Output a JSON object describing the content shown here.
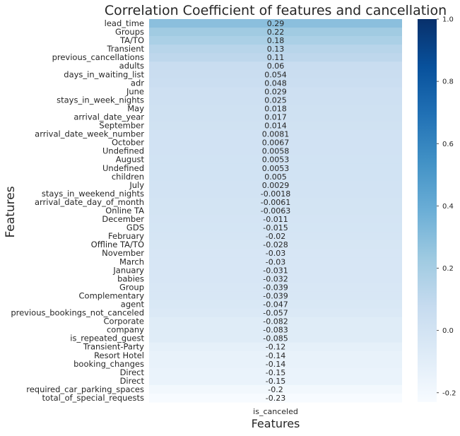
{
  "chart_data": {
    "type": "heatmap",
    "title": "Correlation Coefficient of features and cancellation",
    "xlabel": "Features",
    "ylabel": "Features",
    "column": "is_canceled",
    "colormap": "Blues",
    "vmin": -0.23,
    "vmax": 1.0,
    "colorbar_ticks": [
      1.0,
      0.8,
      0.6,
      0.4,
      0.2,
      0.0,
      -0.2
    ],
    "colorbar_tick_labels": [
      "1.0",
      "0.8",
      "0.6",
      "0.4",
      "0.2",
      "0.0",
      "-0.2"
    ],
    "rows": [
      {
        "label": "lead_time",
        "value": 0.29,
        "text": "0.29"
      },
      {
        "label": "Groups",
        "value": 0.22,
        "text": "0.22"
      },
      {
        "label": "TA/TO",
        "value": 0.18,
        "text": "0.18"
      },
      {
        "label": "Transient",
        "value": 0.13,
        "text": "0.13"
      },
      {
        "label": "previous_cancellations",
        "value": 0.11,
        "text": "0.11"
      },
      {
        "label": "adults",
        "value": 0.06,
        "text": "0.06"
      },
      {
        "label": "days_in_waiting_list",
        "value": 0.054,
        "text": "0.054"
      },
      {
        "label": "adr",
        "value": 0.048,
        "text": "0.048"
      },
      {
        "label": "June",
        "value": 0.029,
        "text": "0.029"
      },
      {
        "label": "stays_in_week_nights",
        "value": 0.025,
        "text": "0.025"
      },
      {
        "label": "May",
        "value": 0.018,
        "text": "0.018"
      },
      {
        "label": "arrival_date_year",
        "value": 0.017,
        "text": "0.017"
      },
      {
        "label": "September",
        "value": 0.014,
        "text": "0.014"
      },
      {
        "label": "arrival_date_week_number",
        "value": 0.0081,
        "text": "0.0081"
      },
      {
        "label": "October",
        "value": 0.0067,
        "text": "0.0067"
      },
      {
        "label": "Undefined",
        "value": 0.0058,
        "text": "0.0058"
      },
      {
        "label": "August",
        "value": 0.0053,
        "text": "0.0053"
      },
      {
        "label": "Undefined",
        "value": 0.0053,
        "text": "0.0053"
      },
      {
        "label": "children",
        "value": 0.005,
        "text": "0.005"
      },
      {
        "label": "July",
        "value": 0.0029,
        "text": "0.0029"
      },
      {
        "label": "stays_in_weekend_nights",
        "value": -0.0018,
        "text": "-0.0018"
      },
      {
        "label": "arrival_date_day_of_month",
        "value": -0.0061,
        "text": "-0.0061"
      },
      {
        "label": "Online TA",
        "value": -0.0063,
        "text": "-0.0063"
      },
      {
        "label": "December",
        "value": -0.011,
        "text": "-0.011"
      },
      {
        "label": "GDS",
        "value": -0.015,
        "text": "-0.015"
      },
      {
        "label": "February",
        "value": -0.02,
        "text": "-0.02"
      },
      {
        "label": "Offline TA/TO",
        "value": -0.028,
        "text": "-0.028"
      },
      {
        "label": "November",
        "value": -0.03,
        "text": "-0.03"
      },
      {
        "label": "March",
        "value": -0.03,
        "text": "-0.03"
      },
      {
        "label": "January",
        "value": -0.031,
        "text": "-0.031"
      },
      {
        "label": "babies",
        "value": -0.032,
        "text": "-0.032"
      },
      {
        "label": "Group",
        "value": -0.039,
        "text": "-0.039"
      },
      {
        "label": "Complementary",
        "value": -0.039,
        "text": "-0.039"
      },
      {
        "label": "agent",
        "value": -0.047,
        "text": "-0.047"
      },
      {
        "label": "previous_bookings_not_canceled",
        "value": -0.057,
        "text": "-0.057"
      },
      {
        "label": "Corporate",
        "value": -0.082,
        "text": "-0.082"
      },
      {
        "label": "company",
        "value": -0.083,
        "text": "-0.083"
      },
      {
        "label": "is_repeated_guest",
        "value": -0.085,
        "text": "-0.085"
      },
      {
        "label": "Transient-Party",
        "value": -0.12,
        "text": "-0.12"
      },
      {
        "label": "Resort Hotel",
        "value": -0.14,
        "text": "-0.14"
      },
      {
        "label": "booking_changes",
        "value": -0.14,
        "text": "-0.14"
      },
      {
        "label": "Direct",
        "value": -0.15,
        "text": "-0.15"
      },
      {
        "label": "Direct",
        "value": -0.15,
        "text": "-0.15"
      },
      {
        "label": "required_car_parking_spaces",
        "value": -0.2,
        "text": "-0.2"
      },
      {
        "label": "total_of_special_requests",
        "value": -0.23,
        "text": "-0.23"
      }
    ]
  }
}
